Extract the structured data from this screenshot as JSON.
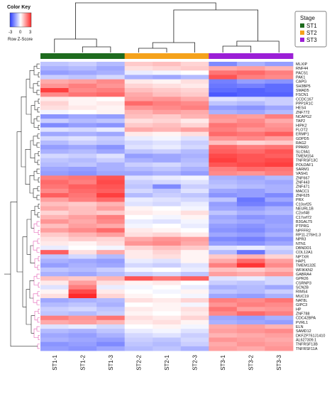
{
  "chart_data": {
    "type": "heatmap",
    "color_key": {
      "title": "Color Key",
      "scale_label": "Row Z-Score",
      "ticks": [
        "-3",
        "0",
        "3"
      ],
      "colors": [
        "#2a3cff",
        "#ffffff",
        "#ff2a2a"
      ]
    },
    "stage_legend": {
      "title": "Stage",
      "entries": [
        {
          "label": "ST1",
          "color": "#1e6b1e"
        },
        {
          "label": "ST2",
          "color": "#f5a21b"
        },
        {
          "label": "ST3",
          "color": "#9b1fd6"
        }
      ]
    },
    "columns": [
      "ST1-1",
      "ST1-2",
      "ST1-3",
      "ST2-2",
      "ST2-1",
      "ST2-3",
      "ST3-1",
      "ST3-2",
      "ST3-3"
    ],
    "column_stage": [
      "ST1",
      "ST1",
      "ST1",
      "ST2",
      "ST2",
      "ST2",
      "ST3",
      "ST3",
      "ST3"
    ],
    "row_labels": [
      "MLXIP",
      "RNF44",
      "PACS1",
      "PAK1",
      "CAPG",
      "SH3BP5",
      "SMAD5",
      "FSCN1",
      "CCDC167",
      "PPP1R1C",
      "HES4",
      "ZNF772",
      "NCAPG2",
      "TAP2",
      "HIPK2",
      "FLOT2",
      "ERMP1",
      "GDPD5",
      "RAG2",
      "PPARD",
      "SLC9A1",
      "TMEM154",
      "TNFRSF13C",
      "POU2AF1",
      "SARM1",
      "VASH1",
      "ZNF667",
      "ZNF443",
      "ZNF471",
      "MACC1",
      "ZNF625",
      "PRX",
      "C10orf25",
      "NEURL1B",
      "C2orf48",
      "C17orf72",
      "B3GALT5",
      "PTPRG",
      "NPFFR2",
      "RP11-276H1.3",
      "NPR3",
      "NTN1",
      "DBNDD1",
      "COL12A1",
      "NPTXR",
      "HAP1",
      "TMEM132E",
      "WFIKKN2",
      "GABRA4",
      "GPR26",
      "CSRNP3",
      "SCN2B",
      "RIMS4",
      "MUC19",
      "NAT8L",
      "GIPC3",
      "HP",
      "ZNF788",
      "CDC42BPA",
      "PVRL1",
      "ELN",
      "SAMD12",
      "DKFZP761J1410",
      "AL627309.1",
      "TNFRSF13B",
      "TNFRSF11A"
    ],
    "values": [
      [
        -0.6,
        -0.5,
        -0.7,
        0.5,
        0.6,
        0.4,
        -1.2,
        -0.8,
        -1.0
      ],
      [
        -0.8,
        -0.7,
        -0.9,
        0.3,
        0.4,
        0.5,
        0.8,
        0.9,
        0.7
      ],
      [
        -1.0,
        -0.9,
        -0.8,
        -0.2,
        -0.1,
        0.0,
        1.3,
        1.4,
        1.2
      ],
      [
        -0.5,
        -0.6,
        -0.4,
        -0.8,
        -0.9,
        -0.7,
        1.6,
        1.2,
        1.1
      ],
      [
        0.8,
        0.9,
        1.1,
        0.2,
        0.1,
        0.3,
        -1.3,
        -1.0,
        -1.1
      ],
      [
        1.0,
        1.2,
        1.0,
        0.4,
        0.3,
        0.2,
        -1.4,
        -1.3,
        -1.5
      ],
      [
        1.8,
        1.1,
        1.2,
        0.6,
        0.5,
        0.4,
        -1.5,
        -1.6,
        -1.5
      ],
      [
        1.1,
        1.3,
        1.4,
        0.8,
        0.6,
        0.5,
        -1.7,
        -1.6,
        -1.6
      ],
      [
        0.2,
        0.1,
        0.0,
        0.9,
        1.0,
        0.8,
        -0.3,
        -0.4,
        -0.5
      ],
      [
        0.4,
        0.1,
        0.2,
        1.4,
        1.2,
        1.1,
        -0.6,
        -0.7,
        -0.5
      ],
      [
        0.3,
        0.2,
        0.1,
        1.0,
        1.1,
        1.2,
        -1.0,
        -1.1,
        -0.9
      ],
      [
        -0.1,
        0.0,
        0.1,
        0.7,
        0.9,
        0.8,
        -0.8,
        -0.9,
        -0.7
      ],
      [
        -1.1,
        -0.9,
        -1.0,
        0.6,
        0.5,
        0.7,
        1.0,
        0.9,
        1.2
      ],
      [
        -0.5,
        -0.7,
        -0.6,
        0.3,
        0.4,
        0.2,
        0.9,
        1.1,
        0.8
      ],
      [
        -1.2,
        -1.0,
        -1.1,
        0.5,
        0.6,
        0.4,
        1.3,
        1.2,
        1.0
      ],
      [
        -0.3,
        -0.4,
        -0.2,
        0.8,
        0.7,
        0.9,
        1.2,
        1.0,
        1.1
      ],
      [
        -0.9,
        -0.8,
        -0.9,
        0.2,
        0.1,
        0.3,
        1.4,
        1.3,
        1.5
      ],
      [
        -0.4,
        -0.3,
        -0.5,
        -0.2,
        -0.1,
        -0.3,
        1.0,
        1.1,
        0.9
      ],
      [
        -0.7,
        -0.5,
        -0.6,
        -0.4,
        -0.3,
        -0.5,
        0.6,
        0.4,
        0.5
      ],
      [
        -1.0,
        -0.9,
        -1.1,
        -0.3,
        -0.2,
        -0.4,
        1.4,
        1.2,
        1.3
      ],
      [
        -0.8,
        -0.7,
        -0.9,
        -0.6,
        -0.5,
        -0.7,
        1.5,
        1.4,
        1.6
      ],
      [
        -0.4,
        -0.5,
        -0.3,
        -1.0,
        -0.9,
        -0.8,
        1.7,
        1.6,
        1.5
      ],
      [
        -0.6,
        -0.7,
        -0.5,
        -0.8,
        -0.9,
        -0.7,
        1.8,
        1.6,
        1.7
      ],
      [
        -0.7,
        -0.6,
        -0.8,
        -0.5,
        -0.4,
        -0.6,
        1.6,
        1.7,
        1.8
      ],
      [
        -0.9,
        -1.0,
        -0.8,
        -0.7,
        -0.6,
        -0.8,
        1.2,
        1.4,
        1.3
      ],
      [
        -1.0,
        -1.1,
        -0.9,
        -0.9,
        -0.8,
        -1.0,
        1.1,
        1.0,
        1.2
      ],
      [
        1.2,
        1.3,
        1.6,
        -0.3,
        -0.2,
        -0.1,
        -0.8,
        -0.9,
        -0.7
      ],
      [
        1.4,
        1.2,
        1.7,
        -0.5,
        -0.4,
        -0.3,
        -0.7,
        -0.8,
        -0.9
      ],
      [
        1.3,
        1.5,
        1.6,
        -0.6,
        -1.2,
        -0.5,
        -0.6,
        -0.7,
        -0.8
      ],
      [
        1.1,
        1.4,
        1.5,
        -0.4,
        -0.6,
        -0.3,
        -0.9,
        -1.0,
        -0.8
      ],
      [
        1.5,
        1.3,
        1.8,
        -0.7,
        -0.5,
        -0.6,
        -1.1,
        -1.0,
        -1.2
      ],
      [
        0.9,
        1.2,
        1.4,
        -0.2,
        -0.3,
        -0.4,
        -0.6,
        -1.4,
        -0.9
      ],
      [
        0.6,
        0.5,
        0.7,
        -0.3,
        -0.4,
        -0.2,
        -1.0,
        -1.3,
        -1.2
      ],
      [
        0.8,
        0.6,
        0.9,
        0.1,
        0.0,
        -0.1,
        -0.9,
        -1.0,
        -0.8
      ],
      [
        0.4,
        0.6,
        0.5,
        0.2,
        0.1,
        0.3,
        -0.6,
        -0.8,
        -0.7
      ],
      [
        0.7,
        0.9,
        1.2,
        0.0,
        -0.1,
        0.1,
        -0.9,
        -1.1,
        -1.0
      ],
      [
        1.0,
        0.8,
        1.1,
        -0.2,
        -0.3,
        -0.1,
        -0.8,
        -0.9,
        -1.0
      ],
      [
        0.6,
        0.9,
        0.8,
        -0.1,
        0.0,
        -0.2,
        -1.0,
        -1.1,
        -0.9
      ],
      [
        0.9,
        1.1,
        1.4,
        0.2,
        0.1,
        0.0,
        -1.1,
        -1.2,
        -1.0
      ],
      [
        0.5,
        0.7,
        0.9,
        0.3,
        0.4,
        0.2,
        -0.9,
        -1.0,
        -0.8
      ],
      [
        0.3,
        0.5,
        0.4,
        0.8,
        1.0,
        0.9,
        -1.2,
        -1.3,
        -1.1
      ],
      [
        0.2,
        0.1,
        0.3,
        1.0,
        1.1,
        0.8,
        -1.0,
        -1.1,
        -0.9
      ],
      [
        -0.2,
        0.0,
        -0.1,
        0.4,
        0.6,
        0.5,
        -0.3,
        -0.2,
        -0.4
      ],
      [
        1.5,
        0.3,
        0.8,
        0.2,
        0.4,
        0.1,
        -0.7,
        -1.4,
        -0.6
      ],
      [
        -0.6,
        -0.4,
        -0.7,
        0.2,
        0.3,
        0.1,
        0.5,
        0.7,
        0.4
      ],
      [
        -0.8,
        -0.9,
        -1.0,
        -0.2,
        -0.3,
        0.1,
        0.8,
        1.4,
        0.9
      ],
      [
        -1.0,
        -0.8,
        -0.9,
        -0.4,
        -0.5,
        -0.3,
        1.2,
        1.9,
        1.1
      ],
      [
        -0.6,
        -0.7,
        -0.5,
        -0.1,
        0.0,
        -0.2,
        0.6,
        0.5,
        0.7
      ],
      [
        -0.8,
        -0.9,
        -0.7,
        -0.5,
        -0.4,
        -0.6,
        0.9,
        0.8,
        1.0
      ],
      [
        0.6,
        0.5,
        0.7,
        1.6,
        1.3,
        1.5,
        -0.3,
        -0.2,
        -0.4
      ],
      [
        0.2,
        0.9,
        0.3,
        0.1,
        0.2,
        0.0,
        -0.5,
        -0.6,
        -0.4
      ],
      [
        -0.3,
        1.2,
        -0.2,
        -0.1,
        0.0,
        -0.2,
        -0.8,
        -0.7,
        -0.9
      ],
      [
        0.1,
        1.7,
        0.2,
        0.0,
        -0.1,
        0.1,
        -0.6,
        -0.7,
        -0.5
      ],
      [
        0.3,
        2.0,
        0.4,
        0.1,
        0.0,
        -0.1,
        -0.9,
        -1.0,
        -0.8
      ],
      [
        -0.9,
        -0.8,
        -0.7,
        0.3,
        0.2,
        0.4,
        1.2,
        1.1,
        1.3
      ],
      [
        -0.7,
        -0.6,
        -0.8,
        0.0,
        0.1,
        -0.1,
        1.0,
        1.2,
        1.1
      ],
      [
        -0.5,
        -0.4,
        -0.6,
        0.2,
        0.1,
        0.3,
        1.3,
        0.9,
        1.0
      ],
      [
        -0.6,
        -0.7,
        -0.5,
        0.1,
        0.0,
        0.2,
        1.1,
        1.4,
        1.2
      ],
      [
        1.2,
        1.0,
        1.3,
        0.3,
        0.2,
        0.4,
        -0.9,
        -1.0,
        -0.8
      ],
      [
        0.8,
        0.9,
        0.7,
        0.2,
        0.3,
        0.1,
        -0.8,
        -0.9,
        -1.0
      ],
      [
        -0.3,
        -0.2,
        -0.4,
        0.0,
        0.1,
        -0.1,
        0.8,
        0.9,
        0.7
      ],
      [
        -0.7,
        -0.8,
        -0.6,
        -0.2,
        -0.1,
        -0.3,
        0.9,
        1.0,
        1.1
      ],
      [
        -0.9,
        -1.0,
        -0.8,
        -0.4,
        -0.3,
        -0.5,
        0.7,
        0.8,
        0.9
      ],
      [
        -0.8,
        -0.9,
        -1.0,
        -0.5,
        -0.6,
        -0.4,
        1.0,
        0.9,
        0.8
      ],
      [
        -1.1,
        -1.0,
        -1.2,
        -0.6,
        -0.7,
        -0.5,
        0.8,
        1.0,
        0.9
      ],
      [
        -1.0,
        -1.1,
        -0.9,
        -0.7,
        -0.6,
        -0.8,
        0.9,
        0.8,
        1.0
      ]
    ]
  }
}
